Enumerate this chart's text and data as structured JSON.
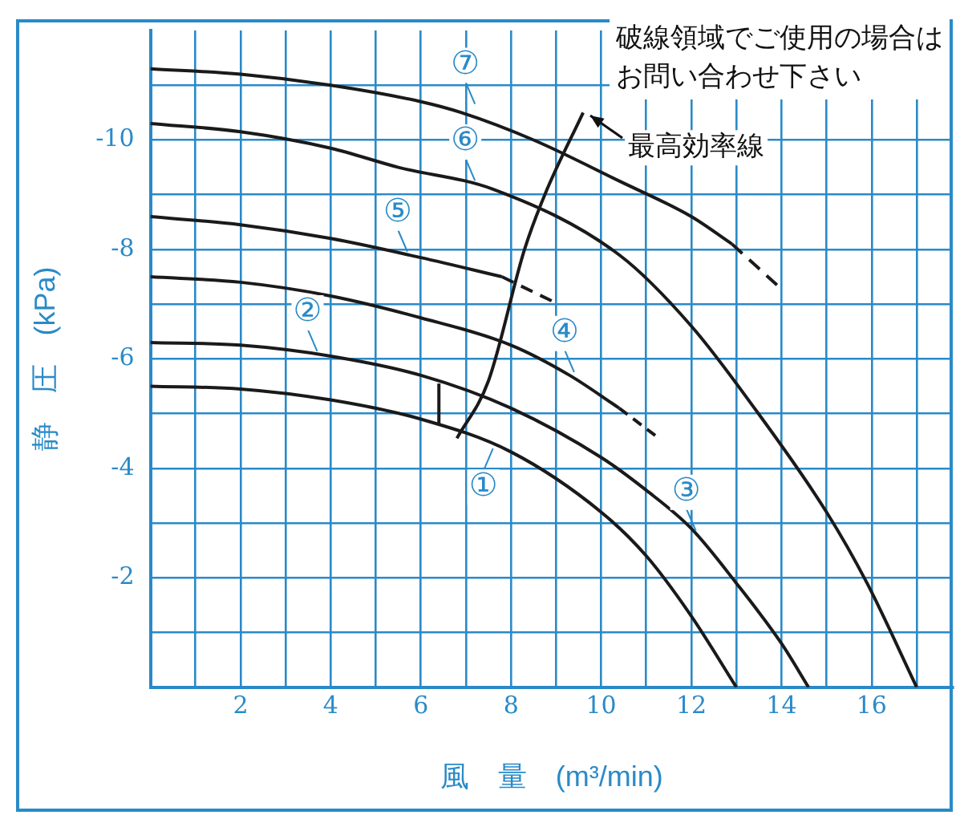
{
  "chart_data": {
    "type": "line",
    "xlabel": "風　量　(m³/min)",
    "ylabel": "静　圧　(kPa)",
    "xlim": [
      0,
      17.8
    ],
    "ylim": [
      0,
      -12
    ],
    "xticks": [
      {
        "value": 1,
        "label": null
      },
      2,
      {
        "value": 3,
        "label": null
      },
      4,
      {
        "value": 5,
        "label": null
      },
      6,
      {
        "value": 7,
        "label": null
      },
      8,
      {
        "value": 9,
        "label": null
      },
      10,
      {
        "value": 11,
        "label": null
      },
      12,
      {
        "value": 13,
        "label": null
      },
      14,
      {
        "value": 15,
        "label": null
      },
      16,
      {
        "value": 17,
        "label": null
      }
    ],
    "yticks": [
      {
        "value": -11,
        "label": null
      },
      -10,
      {
        "value": -9,
        "label": null
      },
      -8,
      {
        "value": -7,
        "label": null
      },
      -6,
      {
        "value": -5,
        "label": null
      },
      -4,
      {
        "value": -3,
        "label": null
      },
      -2,
      {
        "value": -1,
        "label": null
      }
    ],
    "grid": true,
    "legend": false,
    "marker": "none",
    "series": [
      {
        "color": "#1a1a1a",
        "x": [
          0,
          2,
          4,
          6,
          8,
          10,
          11,
          12,
          13
        ],
        "values": [
          -5.5,
          -5.45,
          -5.25,
          -4.9,
          -4.3,
          -3.2,
          -2.4,
          -1.3,
          0
        ]
      },
      {
        "color": "#1a1a1a",
        "x": [
          0,
          2,
          4,
          6,
          8,
          10,
          11,
          12,
          13,
          14,
          14.6
        ],
        "values": [
          -6.3,
          -6.25,
          -6.05,
          -5.7,
          -5.1,
          -4.2,
          -3.6,
          -2.9,
          -1.9,
          -0.8,
          0
        ]
      },
      {
        "color": "#1a1a1a",
        "x": [
          0,
          2,
          4,
          6,
          8,
          9.3,
          10.4
        ],
        "values": [
          -7.5,
          -7.4,
          -7.15,
          -6.75,
          -6.25,
          -5.7,
          -5.1
        ]
      },
      {
        "color": "#1a1a1a",
        "line_style": "dashed",
        "x": [
          10.4,
          11.2
        ],
        "values": [
          -5.1,
          -4.6
        ]
      },
      {
        "color": "#1a1a1a",
        "x": [
          0,
          2,
          4,
          6,
          7.8
        ],
        "values": [
          -8.6,
          -8.45,
          -8.2,
          -7.85,
          -7.5
        ]
      },
      {
        "color": "#1a1a1a",
        "line_style": "dashed",
        "x": [
          7.8,
          8.9
        ],
        "values": [
          -7.5,
          -7.06
        ]
      },
      {
        "color": "#1a1a1a",
        "x": [
          0,
          2,
          4,
          5.5,
          7.6,
          10.4,
          12,
          13.4,
          15,
          15.9,
          17
        ],
        "values": [
          -10.3,
          -10.15,
          -9.85,
          -9.5,
          -9.1,
          -7.9,
          -6.6,
          -5.1,
          -3.2,
          -1.9,
          0
        ]
      },
      {
        "color": "#1a1a1a",
        "x": [
          0,
          2,
          4,
          6,
          6.9,
          8.5,
          10.4,
          12,
          12.9
        ],
        "values": [
          -11.3,
          -11.2,
          -11,
          -10.7,
          -10.5,
          -10,
          -9.25,
          -8.6,
          -8.1
        ]
      },
      {
        "color": "#1a1a1a",
        "line_style": "dashed",
        "x": [
          12.9,
          13.9
        ],
        "values": [
          -8.1,
          -7.35
        ]
      },
      {
        "color": "#1a1a1a",
        "x": [
          6.8,
          7.5,
          8.3,
          8.75,
          9.6
        ],
        "values": [
          -4.55,
          -5.6,
          -8,
          -9,
          -10.5
        ]
      },
      {
        "color": "#1a1a1a",
        "x": [
          6.4,
          6.4
        ],
        "values": [
          -5.55,
          -4.8
        ]
      }
    ],
    "annotations": [
      {
        "text": "①",
        "x": 7.6,
        "y": -4.42
      },
      {
        "text": "②",
        "x": 3.7,
        "y": -6.08
      },
      {
        "text": "③",
        "x": 12.1,
        "y": -2.8
      },
      {
        "text": "④",
        "x": 9.4,
        "y": -5.7
      },
      {
        "text": "⑤",
        "x": 5.7,
        "y": -7.9
      },
      {
        "text": "⑥",
        "x": 7.2,
        "y": -9.2
      },
      {
        "text": "⑦",
        "x": 7.2,
        "y": -10.6
      },
      "破線領域でご使用の場合は",
      "お問い合わせ下さい",
      {
        "text": "最高効率線",
        "x": 9.6,
        "y": -10.5
      }
    ]
  }
}
